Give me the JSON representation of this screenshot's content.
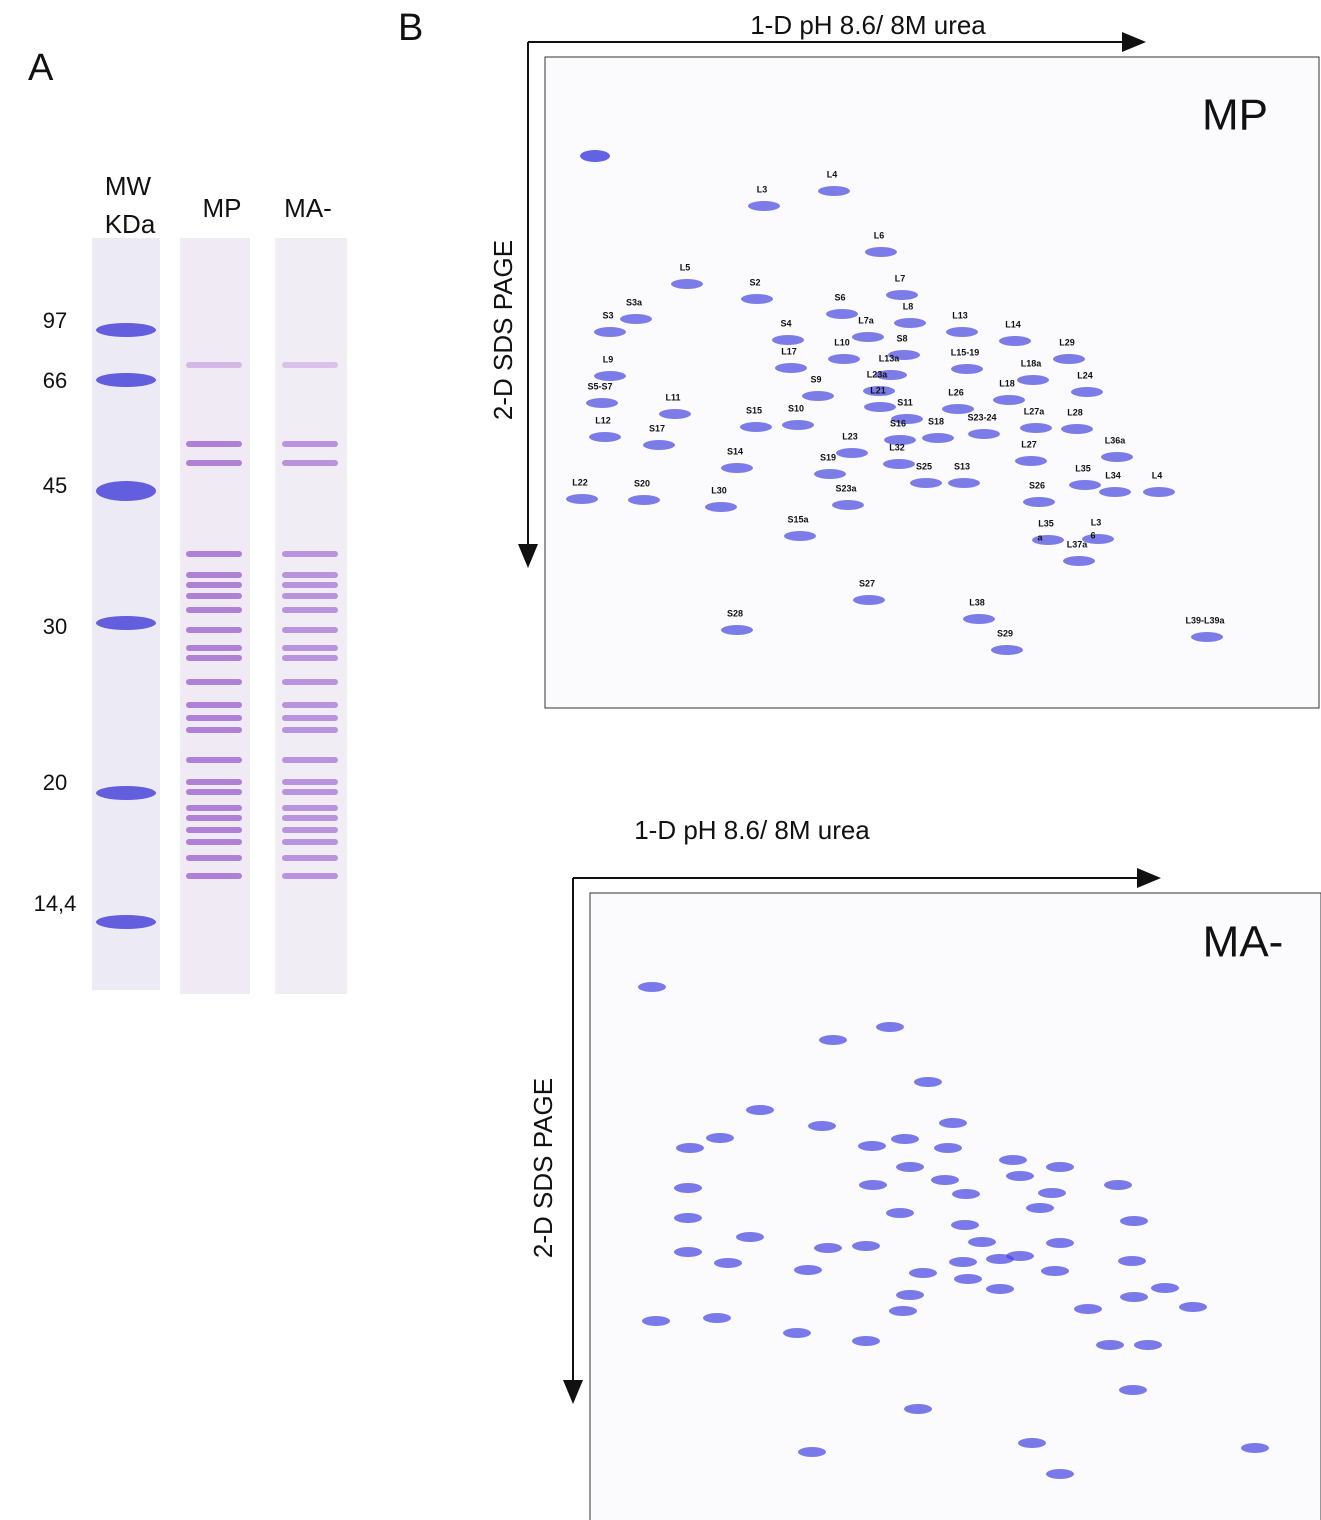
{
  "panel_a": {
    "label": "A",
    "headers": [
      "MW",
      "KDa",
      "MP",
      "MA-"
    ],
    "mw_markers": [
      "97",
      "66",
      "45",
      "30",
      "20",
      "14,4"
    ]
  },
  "panel_b": {
    "label": "B",
    "gel_mp": {
      "x_axis": "1-D pH 8.6/ 8M urea",
      "y_axis": "2-D SDS PAGE",
      "name": "MP",
      "spots": [
        "L4",
        "L3",
        "L6",
        "L5",
        "S2",
        "L7",
        "S6",
        "L8",
        "S3a",
        "S3",
        "S4",
        "L7a",
        "L13",
        "L14",
        "S8",
        "L10",
        "L17",
        "L29",
        "L15-19",
        "L13a",
        "L9",
        "L18a",
        "L23a",
        "S9",
        "L24",
        "S5-S7",
        "L21",
        "L18",
        "L26",
        "L11",
        "S11",
        "L27a",
        "L28",
        "S15",
        "S10",
        "S16",
        "S18",
        "S23-24",
        "L12",
        "S17",
        "L23",
        "L36a",
        "L32",
        "L27",
        "S14",
        "S19",
        "S25",
        "S13",
        "L35",
        "L34",
        "L4",
        "L22",
        "S20",
        "S26",
        "S23a",
        "L30",
        "S15a",
        "L35",
        "a",
        "L3",
        "6",
        "L37a",
        "S27",
        "L38",
        "S28",
        "L39-L39a",
        "S29"
      ]
    },
    "gel_ma": {
      "x_axis": "1-D pH 8.6/ 8M urea",
      "y_axis": "2-D SDS PAGE",
      "name": "MA-"
    }
  }
}
